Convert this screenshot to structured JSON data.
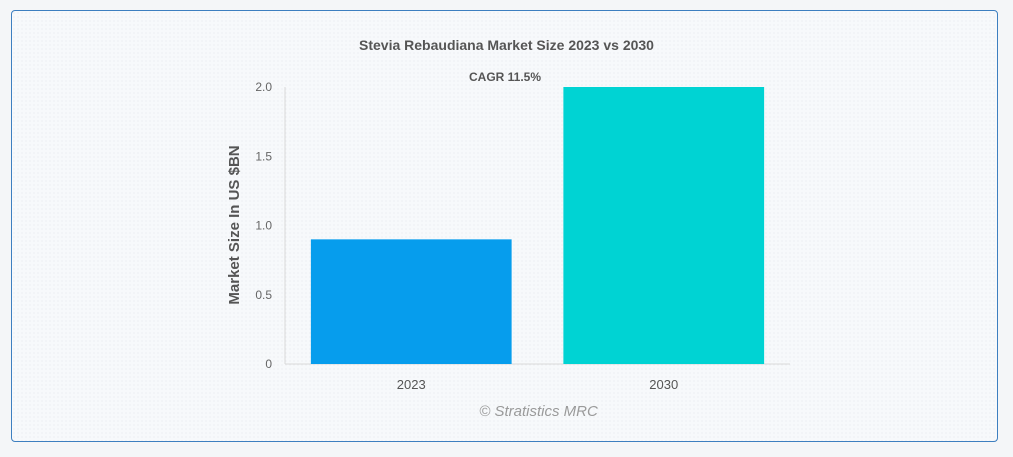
{
  "chart_data": {
    "type": "bar",
    "title": "Stevia Rebaudiana Market Size 2023 vs 2030",
    "ylabel": "Market Size In US $BN",
    "xlabel": "",
    "categories": [
      "2023",
      "2030"
    ],
    "values": [
      0.9,
      2.0
    ],
    "bar_colors": [
      "#069ded",
      "#00d3d3"
    ],
    "ylim": [
      0,
      2.0
    ],
    "yticks": [
      "0",
      "0.5",
      "1.0",
      "1.5",
      "2.0"
    ],
    "ytick_values": [
      0,
      0.5,
      1.0,
      1.5,
      2.0
    ],
    "annotation": "CAGR 11.5%",
    "grid": false,
    "legend": "none"
  },
  "footer": {
    "copyright": "© Stratistics MRC"
  }
}
